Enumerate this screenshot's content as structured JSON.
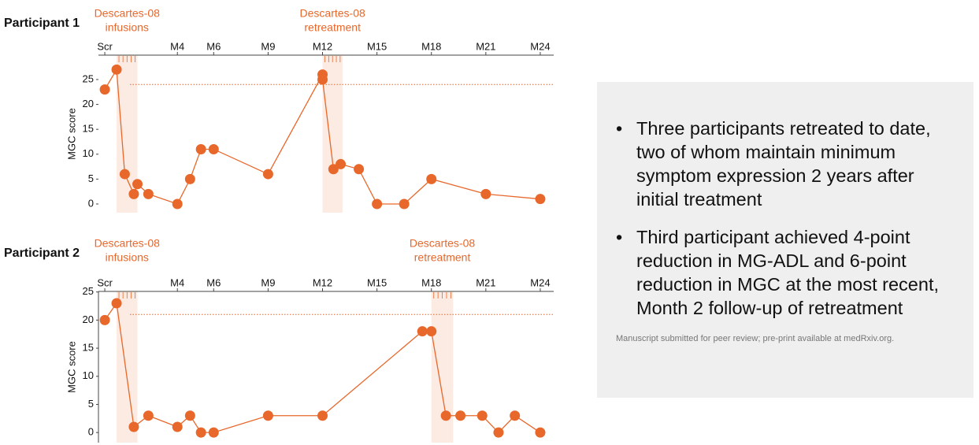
{
  "chart_data": [
    {
      "type": "line",
      "title": "Participant 1",
      "y_label": "MGC score",
      "color": "#e8672a",
      "x": [
        0,
        0.65,
        1.1,
        1.6,
        1.8,
        2.4,
        4,
        4.7,
        5.3,
        6,
        9,
        12,
        12,
        12.6,
        13,
        14,
        15,
        16.5,
        18,
        21,
        24
      ],
      "values": [
        23,
        27,
        6,
        2,
        4,
        2,
        0,
        5,
        11,
        11,
        6,
        26,
        25,
        7,
        8,
        7,
        0,
        0,
        5,
        2,
        1
      ],
      "xlim": [
        -0.35,
        24.74
      ],
      "ylim": [
        -1.74,
        29.9
      ],
      "xticks": [
        {
          "value": 0,
          "label": "Scr"
        },
        {
          "value": 4,
          "label": "M4"
        },
        {
          "value": 6,
          "label": "M6"
        },
        {
          "value": 9,
          "label": "M9"
        },
        {
          "value": 12,
          "label": "M12"
        },
        {
          "value": 15,
          "label": "M15"
        },
        {
          "value": 18,
          "label": "M18"
        },
        {
          "value": 21,
          "label": "M21"
        },
        {
          "value": 24,
          "label": "M24"
        }
      ],
      "yticks": [
        0,
        5,
        10,
        15,
        20,
        25
      ],
      "reference_line": 24,
      "shaded_periods": [
        {
          "x0": 0.65,
          "x1": 1.8,
          "label": [
            "Descartes-08",
            "infusions"
          ]
        },
        {
          "x0": 12,
          "x1": 13.1,
          "label": [
            "Descartes-08",
            "retreatment"
          ]
        }
      ]
    },
    {
      "type": "line",
      "title": "Participant 2",
      "y_label": "MGC score",
      "color": "#e8672a",
      "x": [
        0,
        0.65,
        1.6,
        2.4,
        4,
        4.7,
        5.3,
        6,
        9,
        12,
        17.5,
        18,
        18.8,
        19.6,
        20.8,
        21.7,
        22.6,
        24
      ],
      "values": [
        20,
        23,
        1,
        3,
        1,
        3,
        0,
        0,
        3,
        3,
        18,
        18,
        3,
        3,
        3,
        0,
        3,
        0
      ],
      "xlim": [
        -0.35,
        24.74
      ],
      "ylim": [
        -1.8,
        25.1
      ],
      "xticks": [
        {
          "value": 0,
          "label": "Scr"
        },
        {
          "value": 4,
          "label": "M4"
        },
        {
          "value": 6,
          "label": "M6"
        },
        {
          "value": 9,
          "label": "M9"
        },
        {
          "value": 12,
          "label": "M12"
        },
        {
          "value": 15,
          "label": "M15"
        },
        {
          "value": 18,
          "label": "M18"
        },
        {
          "value": 21,
          "label": "M21"
        },
        {
          "value": 24,
          "label": "M24"
        }
      ],
      "yticks": [
        0,
        5,
        10,
        15,
        20,
        25
      ],
      "reference_line": 21,
      "shaded_periods": [
        {
          "x0": 0.65,
          "x1": 1.8,
          "label": [
            "Descartes-08",
            "infusions"
          ]
        },
        {
          "x0": 18,
          "x1": 19.2,
          "label": [
            "Descartes-08",
            "retreatment"
          ]
        }
      ]
    }
  ],
  "text_panel": {
    "bullets": [
      "Three participants retreated to date, two of whom maintain minimum symptom expression 2 years after initial treatment",
      "Third participant achieved 4-point reduction in MG-ADL and 6-point reduction in MGC at the most recent, Month 2 follow-up of retreatment"
    ],
    "footnote": "Manuscript submitted for peer review; pre-print available at medRxiv.org."
  }
}
